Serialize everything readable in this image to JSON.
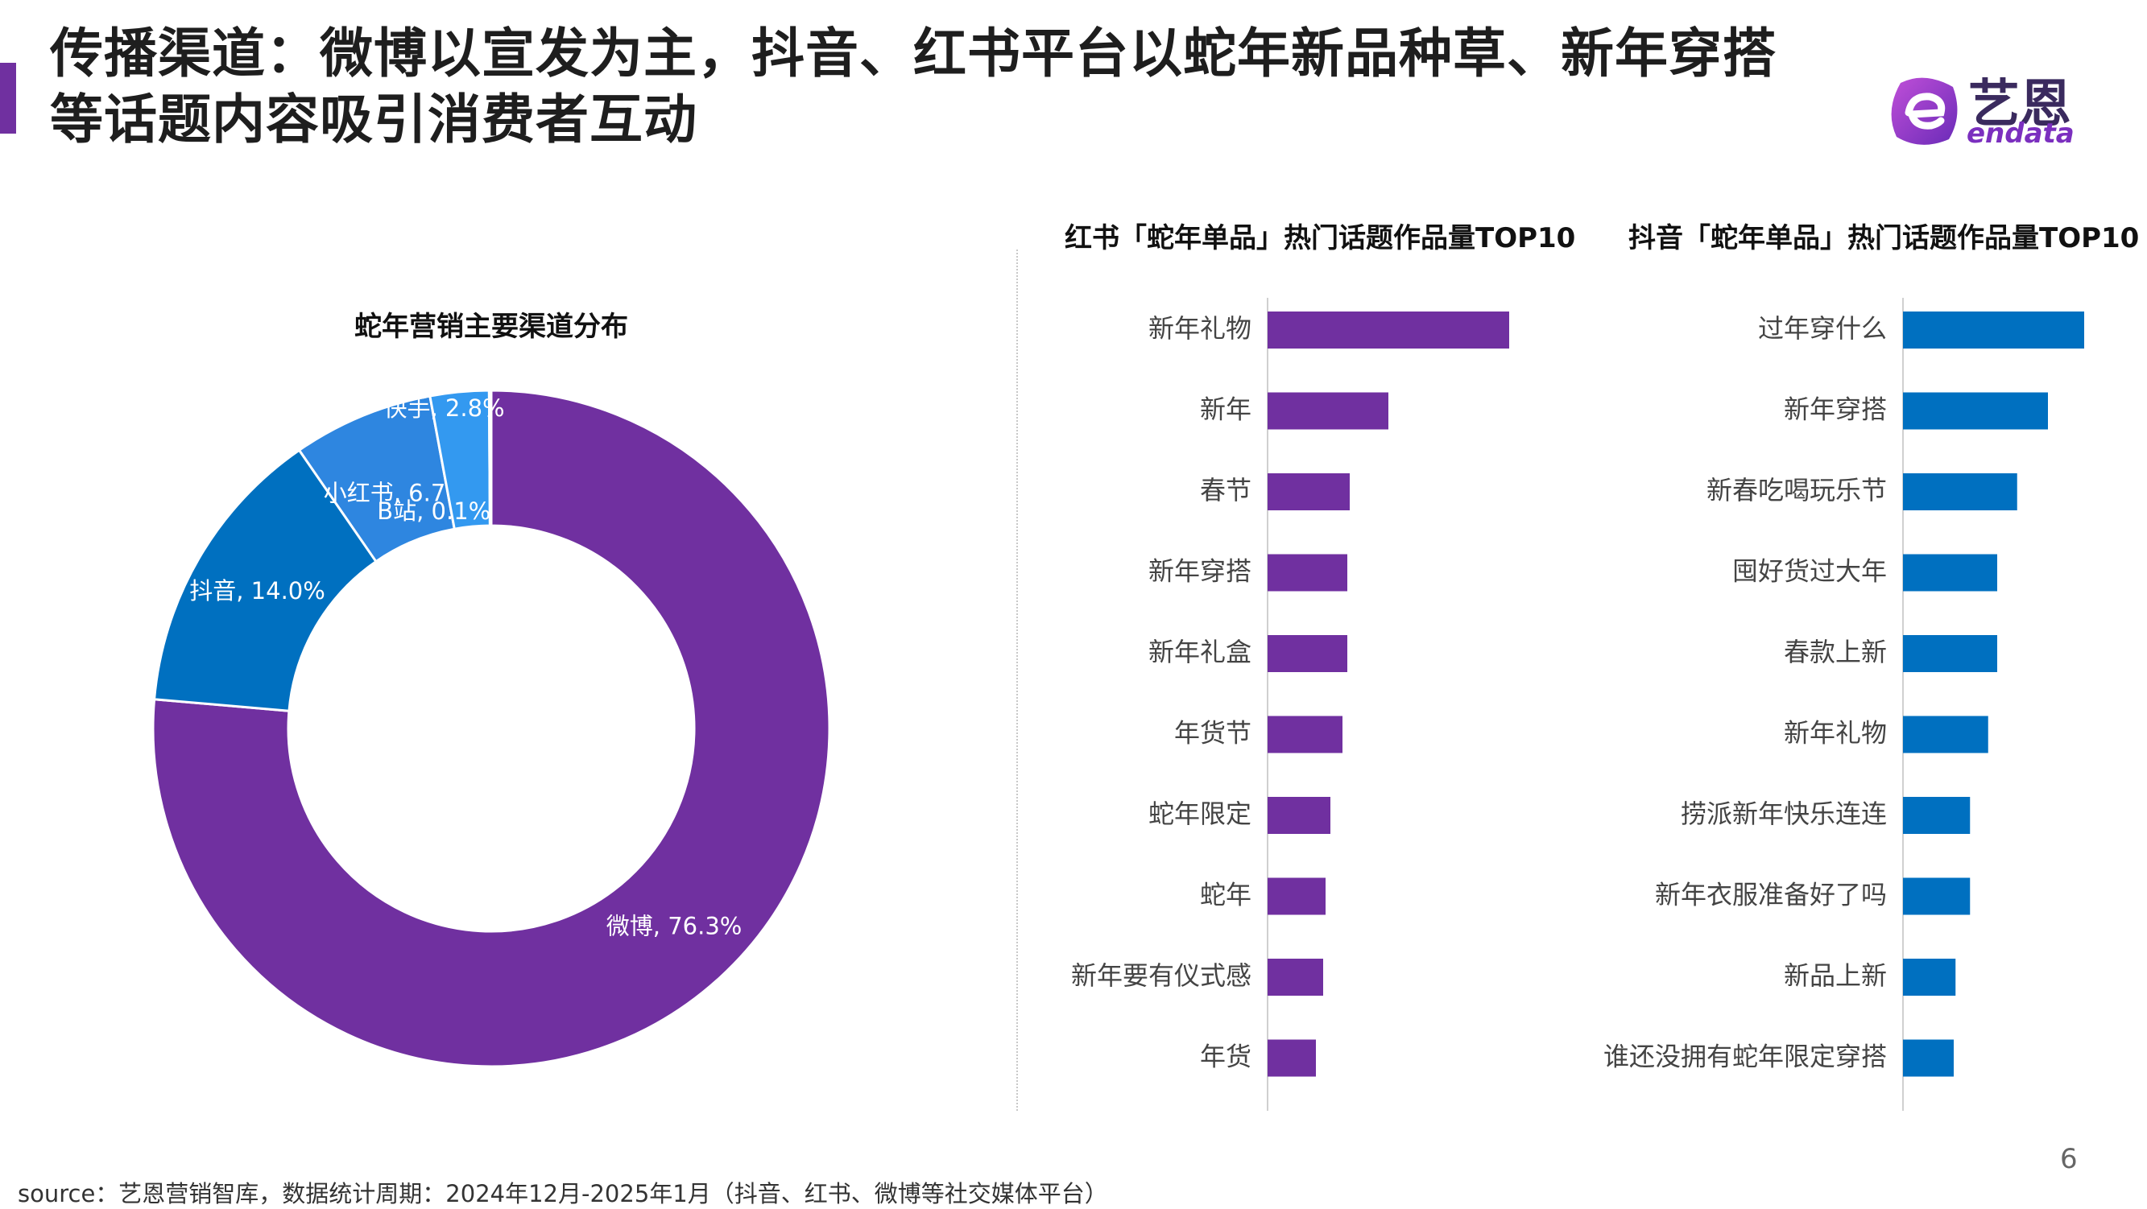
{
  "header": {
    "title_line1": "传播渠道：微博以宣发为主，抖音、红书平台以蛇年新品种草、新年穿搭",
    "title_line2": "等话题内容吸引消费者互动",
    "accent_color": "#7030A0"
  },
  "logo": {
    "name": "艺恩",
    "sub": "endata"
  },
  "chart_data": [
    {
      "type": "pie",
      "title": "蛇年营销主要渠道分布",
      "slices": [
        {
          "label": "微博",
          "value": 76.3,
          "display": "微博, 76.3%",
          "color": "#7030A0"
        },
        {
          "label": "抖音",
          "value": 14.0,
          "display": "抖音, 14.0%",
          "color": "#0070C0"
        },
        {
          "label": "小红书",
          "value": 6.7,
          "display": "小红书, 6.7%",
          "color": "#2E86E0"
        },
        {
          "label": "快手",
          "value": 2.8,
          "display": "快手, 2.8%",
          "color": "#3399F0"
        },
        {
          "label": "B站",
          "value": 0.1,
          "display": "B站, 0.1%",
          "color": "#888888"
        }
      ]
    },
    {
      "type": "bar",
      "orientation": "horizontal",
      "title": "红书「蛇年单品」热门话题作品量TOP10",
      "color": "#7030A0",
      "categories": [
        "新年礼物",
        "新年",
        "春节",
        "新年穿搭",
        "新年礼盒",
        "年货节",
        "蛇年限定",
        "蛇年",
        "新年要有仪式感",
        "年货"
      ],
      "values": [
        100,
        50,
        34,
        33,
        33,
        31,
        26,
        24,
        23,
        20
      ],
      "xlim": [
        0,
        100
      ]
    },
    {
      "type": "bar",
      "orientation": "horizontal",
      "title": "抖音「蛇年单品」热门话题作品量TOP10",
      "color": "#0070C0",
      "categories": [
        "过年穿什么",
        "新年穿搭",
        "新春吃喝玩乐节",
        "囤好货过大年",
        "春款上新",
        "新年礼物",
        "捞派新年快乐连连",
        "新年衣服准备好了吗",
        "新品上新",
        "谁还没拥有蛇年限定穿搭"
      ],
      "values": [
        100,
        80,
        63,
        52,
        52,
        47,
        37,
        37,
        29,
        28
      ],
      "xlim": [
        0,
        100
      ]
    }
  ],
  "footer": {
    "source": "source：艺恩营销智库，数据统计周期：2024年12月-2025年1月（抖音、红书、微博等社交媒体平台）",
    "page_number": "6"
  }
}
